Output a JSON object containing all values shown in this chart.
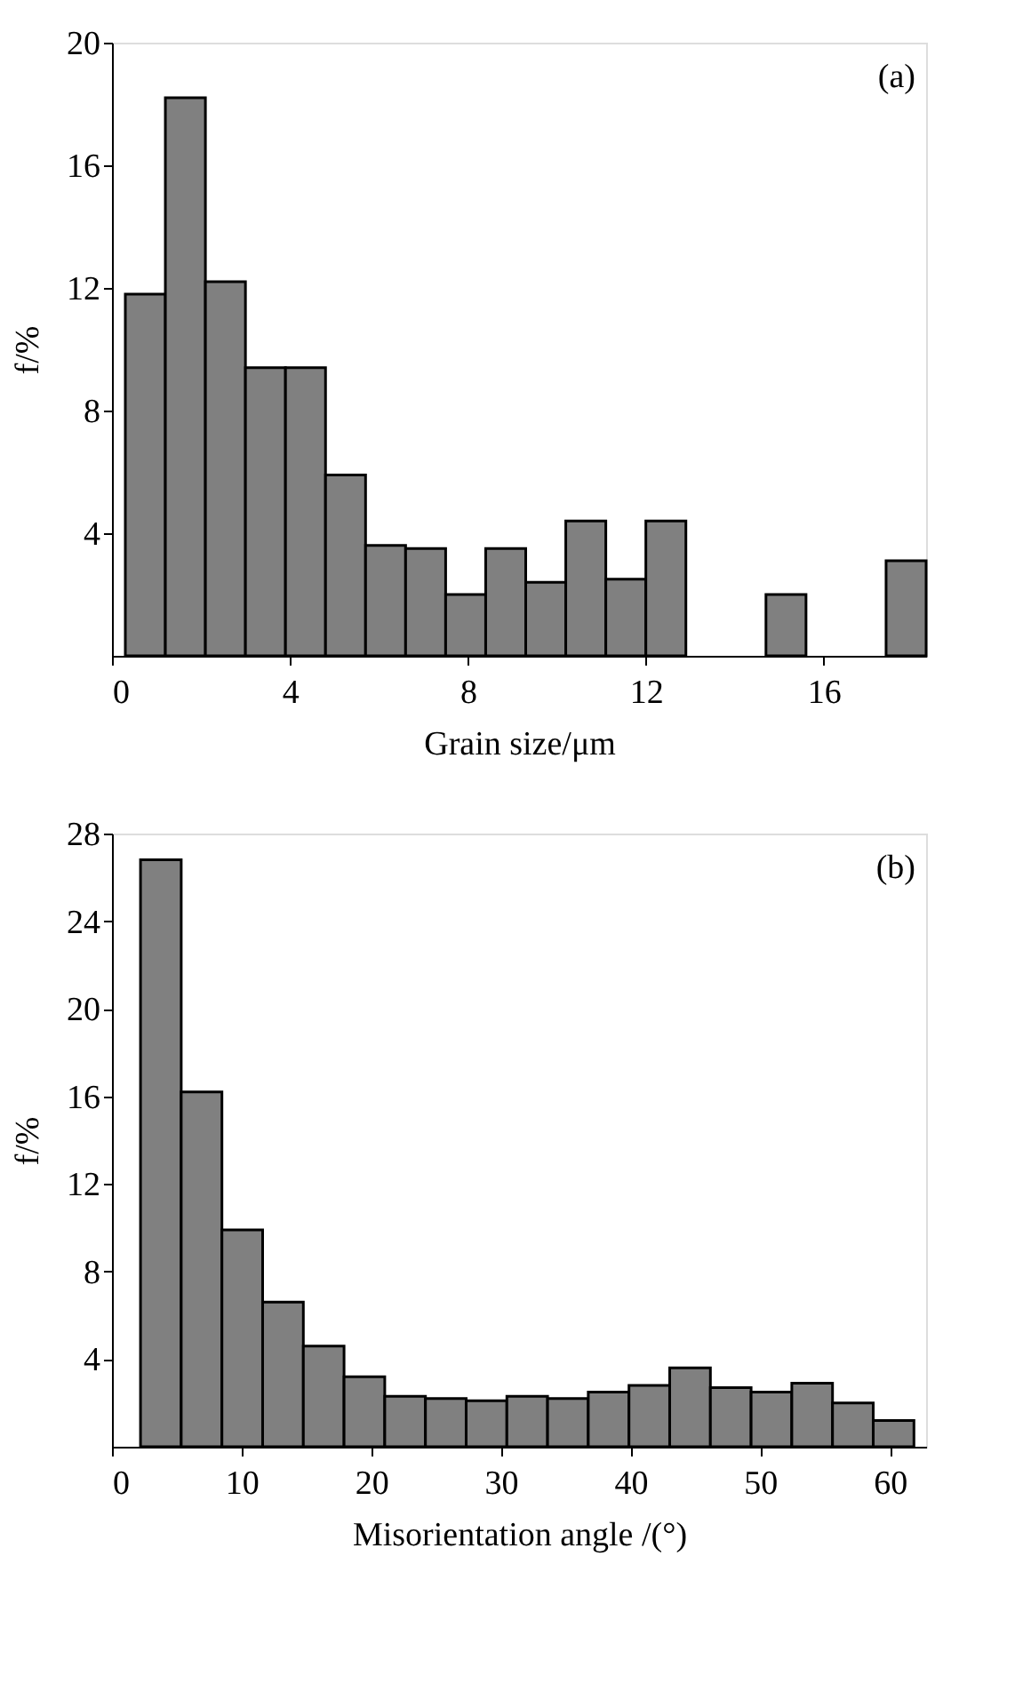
{
  "chart_data": [
    {
      "type": "histogram",
      "xlabel": "Grain size/μm",
      "ylabel": "f/%",
      "annotations": [
        "(a)"
      ],
      "color": "#808080",
      "bins": [
        0.3,
        1.2,
        2.1,
        3.0,
        3.9,
        4.8,
        5.7,
        6.6,
        7.5,
        8.4,
        9.3,
        10.2,
        11.1,
        12.0,
        12.9,
        13.8,
        14.7,
        15.6,
        16.5,
        17.4,
        18.3
      ],
      "values": [
        11.8,
        18.2,
        12.2,
        9.4,
        9.4,
        5.9,
        3.6,
        3.5,
        2.0,
        3.5,
        2.4,
        4.4,
        2.5,
        4.4,
        0,
        0,
        2.0,
        0,
        0,
        3.1
      ],
      "xlim": [
        0,
        18.3
      ],
      "xticks": [
        0,
        4,
        8,
        12,
        16
      ],
      "ylim": [
        0,
        20
      ],
      "yticks": [
        4,
        8,
        12,
        16,
        20
      ],
      "grid": false
    },
    {
      "type": "histogram",
      "xlabel": "Misorientation angle /(°)",
      "ylabel": "f/%",
      "annotations": [
        "(b)"
      ],
      "color": "#808080",
      "bins": [
        2.2,
        5.34,
        8.48,
        11.62,
        14.76,
        17.9,
        21.04,
        24.18,
        27.32,
        30.46,
        33.6,
        36.74,
        39.88,
        43.02,
        46.16,
        49.3,
        52.44,
        55.58,
        58.72,
        61.86
      ],
      "values": [
        26.8,
        16.2,
        9.9,
        6.6,
        4.6,
        3.2,
        2.3,
        2.2,
        2.1,
        2.3,
        2.2,
        2.5,
        2.8,
        3.6,
        2.7,
        2.5,
        2.9,
        2.0,
        1.2
      ],
      "xlim": [
        0,
        62.8
      ],
      "xticks": [
        0,
        10,
        20,
        30,
        40,
        50,
        60
      ],
      "ylim": [
        0,
        28
      ],
      "yticks": [
        4,
        8,
        12,
        16,
        20,
        24,
        28
      ],
      "grid": false
    }
  ]
}
